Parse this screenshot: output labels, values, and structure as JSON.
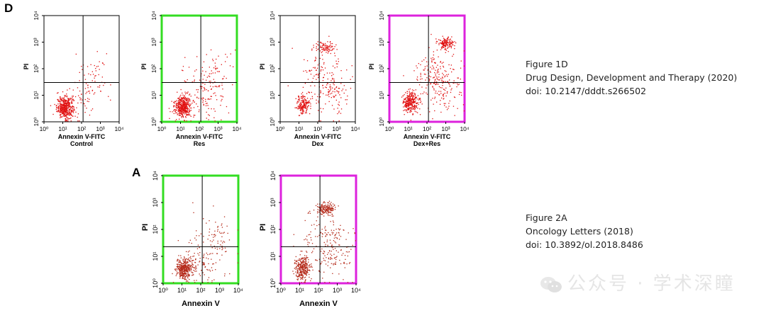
{
  "figure_top": {
    "panel_letter": "D",
    "plots": [
      {
        "xlabel": "Annexin V-FITC",
        "group": "Control",
        "ylabel": "PI",
        "border": "none",
        "ticks_x": [
          "10⁰",
          "10¹",
          "10²",
          "10³",
          "10⁴"
        ],
        "ticks_y": [
          "10⁰",
          "10¹",
          "10²",
          "10³",
          "10⁴"
        ]
      },
      {
        "xlabel": "Annexin V-FITC",
        "group": "Res",
        "ylabel": "PI",
        "border": "green",
        "ticks_x": [
          "10⁰",
          "10¹",
          "10²",
          "10³",
          "10⁴"
        ],
        "ticks_y": [
          "10⁰",
          "10¹",
          "10²",
          "10³",
          "10⁴"
        ]
      },
      {
        "xlabel": "Annexin V-FITC",
        "group": "Dex",
        "ylabel": "PI",
        "border": "none",
        "ticks_x": [
          "10⁰",
          "10¹",
          "10²",
          "10³",
          "10⁴"
        ],
        "ticks_y": [
          "10⁰",
          "10¹",
          "10²",
          "10³",
          "10⁴"
        ]
      },
      {
        "xlabel": "Annexin V-FITC",
        "group": "Dex+Res",
        "ylabel": "PI",
        "border": "magenta",
        "ticks_x": [
          "10⁰",
          "10¹",
          "10²",
          "10³",
          "10⁴"
        ],
        "ticks_y": [
          "10⁰",
          "10¹",
          "10²",
          "10³",
          "10⁴"
        ]
      }
    ]
  },
  "figure_bottom": {
    "panel_letter": "A",
    "plots": [
      {
        "xlabel": "Annexin V",
        "group": "",
        "ylabel": "PI",
        "border": "green",
        "ticks_x": [
          "10⁰",
          "10¹",
          "10²",
          "10³",
          "10⁴"
        ],
        "ticks_y": [
          "10⁰",
          "10¹",
          "10²",
          "10³",
          "10⁴"
        ]
      },
      {
        "xlabel": "Annexin V",
        "group": "",
        "ylabel": "PI",
        "border": "magenta",
        "ticks_x": [
          "10⁰",
          "10¹",
          "10²",
          "10³",
          "10⁴"
        ],
        "ticks_y": [
          "10⁰",
          "10¹",
          "10²",
          "10³",
          "10⁴"
        ]
      }
    ]
  },
  "captions": {
    "top": {
      "line1": "Figure 1D",
      "line2": "Drug Design, Development and Therapy (2020)",
      "line3": "doi: 10.2147/dddt.s266502"
    },
    "bottom": {
      "line1": "Figure 2A",
      "line2": "Oncology Letters (2018)",
      "line3": "doi: 10.3892/ol.2018.8486"
    }
  },
  "watermark": {
    "text": "公众号 · 学术深瞳"
  },
  "colors": {
    "dots_top": "#e01010",
    "dots_bottom": "#b52a1a",
    "green_border": "#33dd22",
    "magenta_border": "#dd22dd",
    "quadrant_line": "#000000"
  }
}
